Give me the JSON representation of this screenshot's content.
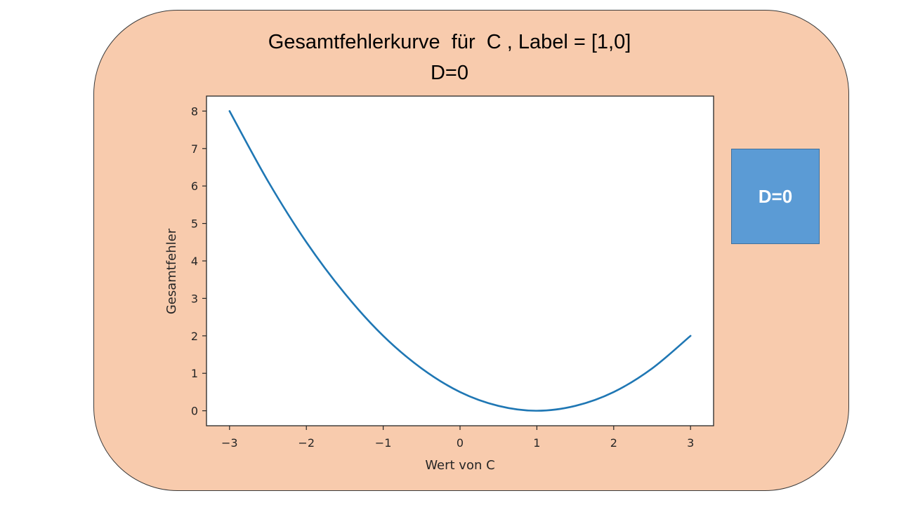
{
  "page": {
    "title_line1": "Gesamtfehlerkurve  für  C , Label = [1,0]",
    "title_line2": "D=0",
    "badge_label": "D=0",
    "panel_color": "#f8cbad",
    "badge_color": "#5b9bd5"
  },
  "chart_data": {
    "type": "line",
    "xlabel": "Wert von C",
    "ylabel": "Gesamtfehler",
    "xlim": [
      -3.3,
      3.3
    ],
    "ylim": [
      -0.4,
      8.4
    ],
    "xticks": [
      -3,
      -2,
      -1,
      0,
      1,
      2,
      3
    ],
    "xtick_labels": [
      "−3",
      "−2",
      "−1",
      "0",
      "1",
      "2",
      "3"
    ],
    "yticks": [
      0,
      1,
      2,
      3,
      4,
      5,
      6,
      7,
      8
    ],
    "ytick_labels": [
      "0",
      "1",
      "2",
      "3",
      "4",
      "5",
      "6",
      "7",
      "8"
    ],
    "grid": false,
    "series": [
      {
        "color": "#1f77b4",
        "x": [
          -3,
          -2.5,
          -2,
          -1.5,
          -1,
          -0.5,
          0,
          0.5,
          1,
          1.5,
          2,
          2.5,
          3
        ],
        "y": [
          8,
          6.13,
          4.5,
          3.13,
          2,
          1.13,
          0.5,
          0.13,
          0,
          0.13,
          0.5,
          1.13,
          2
        ]
      }
    ]
  }
}
